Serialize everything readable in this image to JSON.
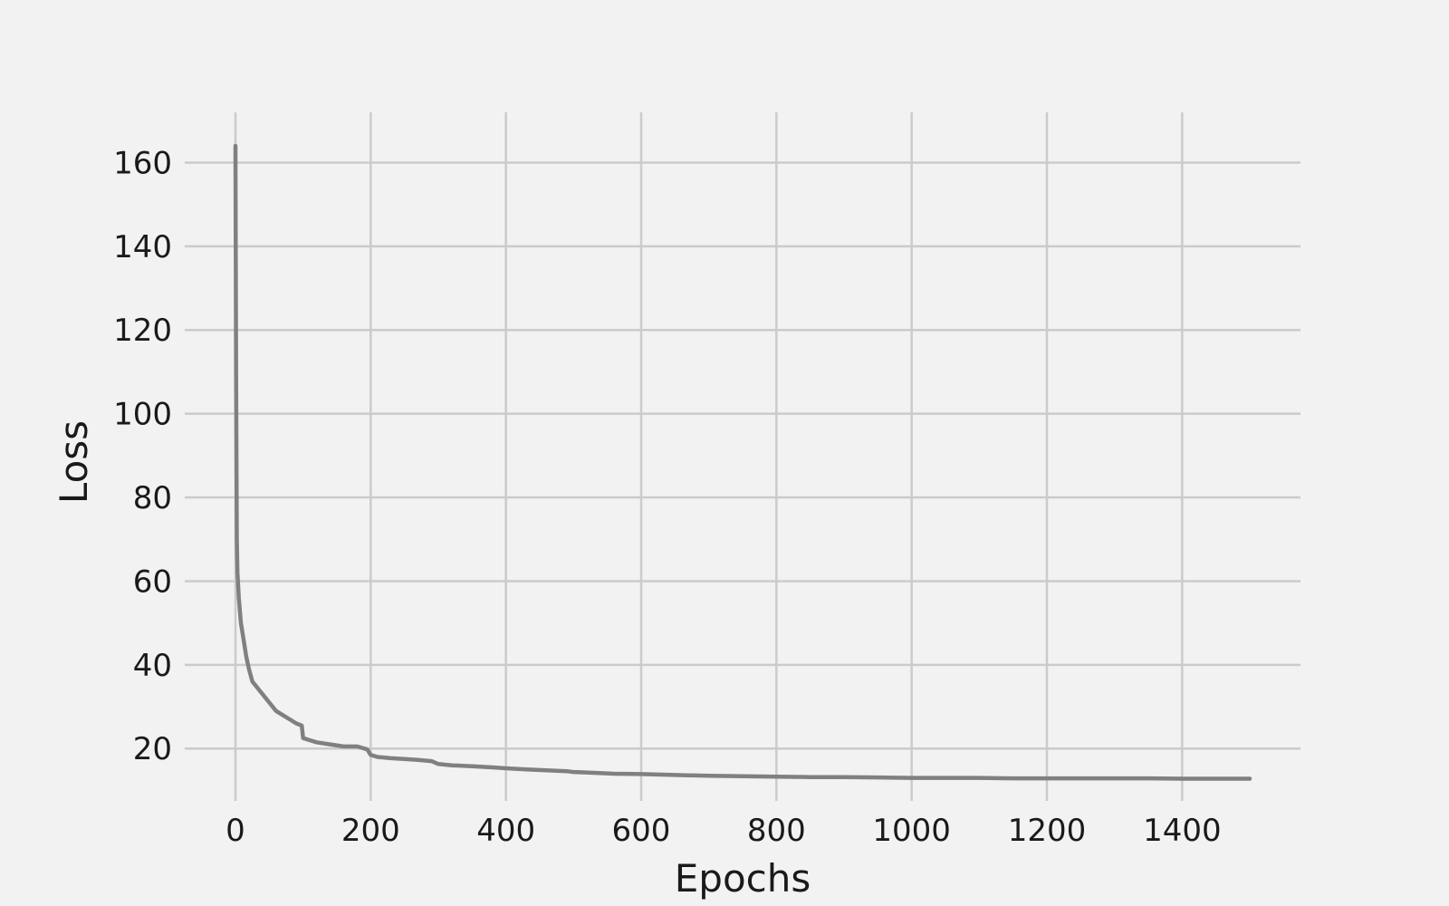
{
  "chart_data": {
    "type": "line",
    "title": "",
    "xlabel": "Epochs",
    "ylabel": "Loss",
    "xlim": [
      -75,
      1575
    ],
    "ylim": [
      7.5,
      172
    ],
    "x_ticks": [
      0,
      200,
      400,
      600,
      800,
      1000,
      1200,
      1400
    ],
    "y_ticks": [
      20,
      40,
      60,
      80,
      100,
      120,
      140,
      160
    ],
    "grid": true,
    "legend": "none",
    "colors": {
      "background": "#f2f2f2",
      "grid": "#cbcbcb",
      "line": "#808080"
    },
    "series": [
      {
        "x": [
          0,
          1,
          2,
          3,
          5,
          8,
          12,
          16,
          20,
          25,
          30,
          40,
          50,
          60,
          70,
          80,
          90,
          98,
          100,
          110,
          120,
          140,
          160,
          180,
          195,
          200,
          210,
          230,
          250,
          270,
          290,
          300,
          320,
          350,
          380,
          400,
          430,
          460,
          490,
          500,
          530,
          560,
          600,
          650,
          700,
          750,
          800,
          850,
          900,
          950,
          1000,
          1050,
          1100,
          1150,
          1200,
          1250,
          1300,
          1350,
          1400,
          1450,
          1500
        ],
        "y": [
          164,
          110,
          70,
          62,
          56,
          50,
          46,
          42,
          39,
          36,
          35,
          33,
          31,
          29,
          28,
          27,
          26,
          25.5,
          22.5,
          22,
          21.5,
          21,
          20.5,
          20.5,
          19.8,
          18.5,
          18,
          17.7,
          17.5,
          17.3,
          17,
          16.3,
          16,
          15.8,
          15.5,
          15.3,
          15,
          14.8,
          14.6,
          14.4,
          14.2,
          14,
          13.9,
          13.7,
          13.5,
          13.4,
          13.3,
          13.2,
          13.2,
          13.1,
          13,
          13,
          13,
          12.9,
          12.9,
          12.9,
          12.9,
          12.9,
          12.8,
          12.8,
          12.8
        ]
      }
    ]
  }
}
